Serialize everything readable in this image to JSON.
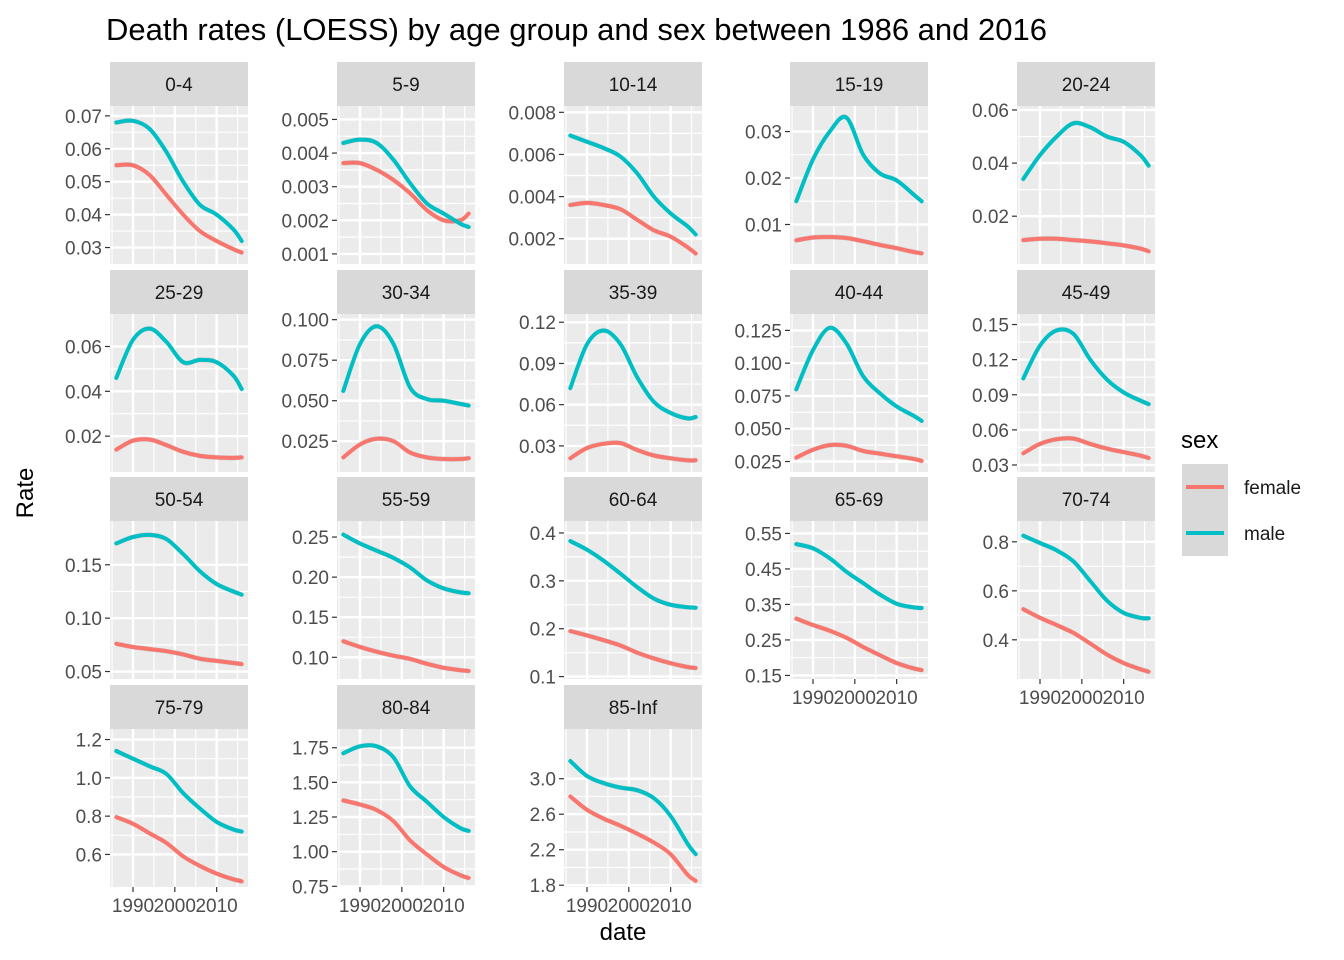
{
  "chart_data": {
    "type": "line",
    "title": "Death rates (LOESS) by age group and sex between 1986 and 2016",
    "xlabel": "date",
    "ylabel": "Rate",
    "x": [
      1986,
      1990,
      1994,
      1998,
      2002,
      2006,
      2010,
      2014,
      2016
    ],
    "x_ticks": [
      1990,
      2000,
      2010
    ],
    "x_tick_labels": [
      "1990",
      "2000",
      "2010"
    ],
    "grid": true,
    "legend": {
      "title": "sex",
      "position": "right",
      "entries": [
        {
          "label": "female",
          "color": "#F8766D"
        },
        {
          "label": "male",
          "color": "#00BFC4"
        }
      ]
    },
    "colors": {
      "female": "#F8766D",
      "male": "#00BFC4",
      "panel_bg": "#EBEBEB",
      "strip_bg": "#D9D9D9",
      "ribbon": "#999999"
    },
    "facets": [
      {
        "label": "0-4",
        "ylim": [
          0.025,
          0.073
        ],
        "yticks": [
          0.03,
          0.04,
          0.05,
          0.06,
          0.07
        ],
        "ytick_labels": [
          "0.03",
          "0.04",
          "0.05",
          "0.06",
          "0.07"
        ],
        "series": [
          {
            "name": "female",
            "values": [
              0.055,
              0.055,
              0.052,
              0.046,
              0.04,
              0.035,
              0.032,
              0.0295,
              0.0285
            ]
          },
          {
            "name": "male",
            "values": [
              0.068,
              0.0685,
              0.066,
              0.059,
              0.05,
              0.043,
              0.04,
              0.0355,
              0.032
            ]
          }
        ]
      },
      {
        "label": "5-9",
        "ylim": [
          0.0007,
          0.0054
        ],
        "yticks": [
          0.001,
          0.002,
          0.003,
          0.004,
          0.005
        ],
        "ytick_labels": [
          "0.001",
          "0.002",
          "0.003",
          "0.004",
          "0.005"
        ],
        "series": [
          {
            "name": "female",
            "values": [
              0.0037,
              0.0037,
              0.0035,
              0.0032,
              0.0028,
              0.0023,
              0.002,
              0.002,
              0.0022
            ]
          },
          {
            "name": "male",
            "values": [
              0.0043,
              0.0044,
              0.0043,
              0.0038,
              0.0031,
              0.0025,
              0.0022,
              0.0019,
              0.0018
            ]
          }
        ]
      },
      {
        "label": "10-14",
        "ylim": [
          0.0008,
          0.0083
        ],
        "yticks": [
          0.002,
          0.004,
          0.006,
          0.008
        ],
        "ytick_labels": [
          "0.002",
          "0.004",
          "0.006",
          "0.008"
        ],
        "series": [
          {
            "name": "female",
            "values": [
              0.0036,
              0.0037,
              0.0036,
              0.0034,
              0.0029,
              0.0024,
              0.0021,
              0.0016,
              0.0013
            ]
          },
          {
            "name": "male",
            "values": [
              0.0069,
              0.0066,
              0.0063,
              0.0059,
              0.0051,
              0.004,
              0.0032,
              0.0026,
              0.0022
            ]
          }
        ]
      },
      {
        "label": "15-19",
        "ylim": [
          0.0015,
          0.0355
        ],
        "yticks": [
          0.01,
          0.02,
          0.03
        ],
        "ytick_labels": [
          "0.01",
          "0.02",
          "0.03"
        ],
        "series": [
          {
            "name": "female",
            "values": [
              0.0066,
              0.0072,
              0.0073,
              0.0071,
              0.0064,
              0.0056,
              0.0049,
              0.0041,
              0.0038
            ]
          },
          {
            "name": "male",
            "values": [
              0.015,
              0.024,
              0.03,
              0.033,
              0.025,
              0.021,
              0.0195,
              0.0165,
              0.015
            ]
          }
        ]
      },
      {
        "label": "20-24",
        "ylim": [
          0.002,
          0.0615
        ],
        "yticks": [
          0.02,
          0.04,
          0.06
        ],
        "ytick_labels": [
          "0.02",
          "0.04",
          "0.06"
        ],
        "series": [
          {
            "name": "female",
            "values": [
              0.011,
              0.0115,
              0.0115,
              0.011,
              0.0105,
              0.0098,
              0.009,
              0.0078,
              0.0068
            ]
          },
          {
            "name": "male",
            "values": [
              0.034,
              0.043,
              0.05,
              0.055,
              0.0535,
              0.05,
              0.048,
              0.043,
              0.039
            ]
          }
        ]
      },
      {
        "label": "25-29",
        "ylim": [
          0.004,
          0.0745
        ],
        "yticks": [
          0.02,
          0.04,
          0.06
        ],
        "ytick_labels": [
          "0.02",
          "0.04",
          "0.06"
        ],
        "series": [
          {
            "name": "female",
            "values": [
              0.014,
              0.018,
              0.0185,
              0.016,
              0.013,
              0.0112,
              0.0105,
              0.0103,
              0.0105
            ]
          },
          {
            "name": "male",
            "values": [
              0.046,
              0.063,
              0.068,
              0.062,
              0.053,
              0.054,
              0.053,
              0.047,
              0.041
            ]
          }
        ]
      },
      {
        "label": "30-34",
        "ylim": [
          0.006,
          0.1035
        ],
        "yticks": [
          0.025,
          0.05,
          0.075,
          0.1
        ],
        "ytick_labels": [
          "0.025",
          "0.050",
          "0.075",
          "0.100"
        ],
        "series": [
          {
            "name": "female",
            "values": [
              0.015,
              0.023,
              0.0265,
              0.025,
              0.018,
              0.015,
              0.014,
              0.014,
              0.0145
            ]
          },
          {
            "name": "male",
            "values": [
              0.056,
              0.085,
              0.096,
              0.085,
              0.058,
              0.051,
              0.05,
              0.048,
              0.047
            ]
          }
        ]
      },
      {
        "label": "35-39",
        "ylim": [
          0.011,
          0.126
        ],
        "yticks": [
          0.03,
          0.06,
          0.09,
          0.12
        ],
        "ytick_labels": [
          "0.03",
          "0.06",
          "0.09",
          "0.12"
        ],
        "series": [
          {
            "name": "female",
            "values": [
              0.021,
              0.0285,
              0.0315,
              0.032,
              0.027,
              0.023,
              0.021,
              0.0195,
              0.0195
            ]
          },
          {
            "name": "male",
            "values": [
              0.072,
              0.104,
              0.114,
              0.104,
              0.08,
              0.062,
              0.054,
              0.05,
              0.051
            ]
          }
        ]
      },
      {
        "label": "40-44",
        "ylim": [
          0.017,
          0.1375
        ],
        "yticks": [
          0.025,
          0.05,
          0.075,
          0.1,
          0.125
        ],
        "ytick_labels": [
          "0.025",
          "0.050",
          "0.075",
          "0.100",
          "0.125"
        ],
        "series": [
          {
            "name": "female",
            "values": [
              0.028,
              0.034,
              0.0375,
              0.037,
              0.033,
              0.031,
              0.029,
              0.027,
              0.0255
            ]
          },
          {
            "name": "male",
            "values": [
              0.08,
              0.11,
              0.127,
              0.115,
              0.09,
              0.077,
              0.067,
              0.06,
              0.056
            ]
          }
        ]
      },
      {
        "label": "45-49",
        "ylim": [
          0.024,
          0.159
        ],
        "yticks": [
          0.03,
          0.06,
          0.09,
          0.12,
          0.15
        ],
        "ytick_labels": [
          "0.03",
          "0.06",
          "0.09",
          "0.12",
          "0.15"
        ],
        "series": [
          {
            "name": "female",
            "values": [
              0.04,
              0.048,
              0.052,
              0.0525,
              0.048,
              0.044,
              0.041,
              0.038,
              0.036
            ]
          },
          {
            "name": "male",
            "values": [
              0.104,
              0.132,
              0.145,
              0.142,
              0.12,
              0.103,
              0.092,
              0.085,
              0.082
            ]
          }
        ]
      },
      {
        "label": "50-54",
        "ylim": [
          0.043,
          0.191
        ],
        "yticks": [
          0.05,
          0.1,
          0.15
        ],
        "ytick_labels": [
          "0.05",
          "0.10",
          "0.15"
        ],
        "series": [
          {
            "name": "female",
            "values": [
              0.076,
              0.073,
              0.071,
              0.069,
              0.066,
              0.062,
              0.06,
              0.058,
              0.057
            ]
          },
          {
            "name": "male",
            "values": [
              0.17,
              0.176,
              0.178,
              0.174,
              0.16,
              0.144,
              0.132,
              0.125,
              0.122
            ]
          }
        ]
      },
      {
        "label": "55-59",
        "ylim": [
          0.073,
          0.27
        ],
        "yticks": [
          0.1,
          0.15,
          0.2,
          0.25
        ],
        "ytick_labels": [
          "0.10",
          "0.15",
          "0.20",
          "0.25"
        ],
        "series": [
          {
            "name": "female",
            "values": [
              0.12,
              0.113,
              0.107,
              0.102,
              0.098,
              0.092,
              0.087,
              0.084,
              0.083
            ]
          },
          {
            "name": "male",
            "values": [
              0.253,
              0.242,
              0.233,
              0.224,
              0.212,
              0.196,
              0.186,
              0.181,
              0.18
            ]
          }
        ]
      },
      {
        "label": "60-64",
        "ylim": [
          0.095,
          0.425
        ],
        "yticks": [
          0.1,
          0.2,
          0.3,
          0.4
        ],
        "ytick_labels": [
          "0.1",
          "0.2",
          "0.3",
          "0.4"
        ],
        "series": [
          {
            "name": "female",
            "values": [
              0.195,
              0.186,
              0.176,
              0.165,
              0.15,
              0.138,
              0.128,
              0.12,
              0.118
            ]
          },
          {
            "name": "male",
            "values": [
              0.383,
              0.365,
              0.342,
              0.315,
              0.287,
              0.263,
              0.25,
              0.245,
              0.244
            ]
          }
        ]
      },
      {
        "label": "65-69",
        "ylim": [
          0.14,
          0.585
        ],
        "yticks": [
          0.15,
          0.25,
          0.35,
          0.45,
          0.55
        ],
        "ytick_labels": [
          "0.15",
          "0.25",
          "0.35",
          "0.45",
          "0.55"
        ],
        "series": [
          {
            "name": "female",
            "values": [
              0.31,
              0.292,
              0.276,
              0.256,
              0.23,
              0.207,
              0.185,
              0.17,
              0.165
            ]
          },
          {
            "name": "male",
            "values": [
              0.52,
              0.508,
              0.48,
              0.442,
              0.41,
              0.378,
              0.352,
              0.342,
              0.34
            ]
          }
        ]
      },
      {
        "label": "70-74",
        "ylim": [
          0.24,
          0.885
        ],
        "yticks": [
          0.4,
          0.6,
          0.8
        ],
        "ytick_labels": [
          "0.4",
          "0.6",
          "0.8"
        ],
        "series": [
          {
            "name": "female",
            "values": [
              0.525,
              0.49,
              0.46,
              0.428,
              0.385,
              0.34,
              0.305,
              0.28,
              0.27
            ]
          },
          {
            "name": "male",
            "values": [
              0.825,
              0.795,
              0.765,
              0.72,
              0.64,
              0.56,
              0.51,
              0.49,
              0.488
            ]
          }
        ]
      },
      {
        "label": "75-79",
        "ylim": [
          0.43,
          1.255
        ],
        "yticks": [
          0.6,
          0.8,
          1.0,
          1.2
        ],
        "ytick_labels": [
          "0.6",
          "0.8",
          "1.0",
          "1.2"
        ],
        "series": [
          {
            "name": "female",
            "values": [
              0.795,
              0.76,
              0.71,
              0.66,
              0.59,
              0.54,
              0.5,
              0.47,
              0.46
            ]
          },
          {
            "name": "male",
            "values": [
              1.14,
              1.1,
              1.06,
              1.02,
              0.92,
              0.84,
              0.77,
              0.73,
              0.72
            ]
          }
        ]
      },
      {
        "label": "80-84",
        "ylim": [
          0.745,
          1.885
        ],
        "yticks": [
          0.75,
          1.0,
          1.25,
          1.5,
          1.75
        ],
        "ytick_labels": [
          "0.75",
          "1.00",
          "1.25",
          "1.50",
          "1.75"
        ],
        "series": [
          {
            "name": "female",
            "values": [
              1.37,
              1.34,
              1.3,
              1.22,
              1.08,
              0.98,
              0.89,
              0.83,
              0.81
            ]
          },
          {
            "name": "male",
            "values": [
              1.71,
              1.76,
              1.76,
              1.68,
              1.47,
              1.36,
              1.25,
              1.17,
              1.15
            ]
          }
        ]
      },
      {
        "label": "85-Inf",
        "ylim": [
          1.78,
          3.56
        ],
        "yticks": [
          1.8,
          2.2,
          2.6,
          3.0
        ],
        "ytick_labels": [
          "1.8",
          "2.2",
          "2.6",
          "3.0"
        ],
        "series": [
          {
            "name": "female",
            "values": [
              2.8,
              2.65,
              2.55,
              2.47,
              2.38,
              2.28,
              2.15,
              1.92,
              1.85
            ]
          },
          {
            "name": "male",
            "values": [
              3.2,
              3.03,
              2.95,
              2.9,
              2.87,
              2.78,
              2.58,
              2.27,
              2.15
            ]
          }
        ]
      }
    ]
  }
}
